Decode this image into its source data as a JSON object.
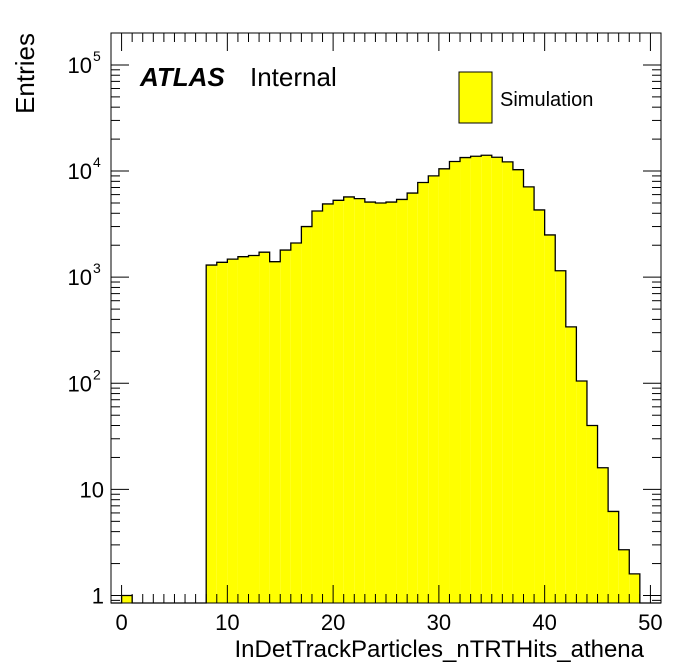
{
  "chart_data": {
    "type": "bar",
    "title": "",
    "xlabel": "InDetTrackParticles_nTRTHits_athena",
    "ylabel": "Entries",
    "xlim": [
      -1,
      51
    ],
    "ylim": [
      0.85,
      200000
    ],
    "log_y": true,
    "grid": false,
    "legend_position": "top-right",
    "bar_color": "#ffff00",
    "edge_color": "#000000",
    "x_ticks": [
      "0",
      "10",
      "20",
      "30",
      "40",
      "50"
    ],
    "y_ticks": [
      {
        "value": 1,
        "base": "1",
        "exp": ""
      },
      {
        "value": 10,
        "base": "10",
        "exp": ""
      },
      {
        "value": 100,
        "base": "10",
        "exp": "2"
      },
      {
        "value": 1000,
        "base": "10",
        "exp": "3"
      },
      {
        "value": 10000,
        "base": "10",
        "exp": "4"
      },
      {
        "value": 100000,
        "base": "10",
        "exp": "5"
      }
    ],
    "series": [
      {
        "name": "Simulation",
        "bin_edges_start": -1,
        "bin_width": 1,
        "values": [
          0,
          1,
          0,
          0,
          0,
          0,
          0,
          0,
          0,
          1300,
          1380,
          1480,
          1560,
          1600,
          1720,
          1400,
          1800,
          2100,
          3000,
          4200,
          4900,
          5300,
          5700,
          5500,
          5100,
          5000,
          5100,
          5400,
          6200,
          7800,
          9000,
          10500,
          12300,
          13400,
          13800,
          14100,
          13500,
          12200,
          10300,
          7100,
          4300,
          2500,
          1150,
          340,
          105,
          40,
          16,
          6.2,
          2.7,
          1.6,
          0,
          0
        ]
      }
    ]
  },
  "labels": {
    "atlas": "ATLAS",
    "internal": "Internal",
    "legend_entry": "Simulation"
  }
}
